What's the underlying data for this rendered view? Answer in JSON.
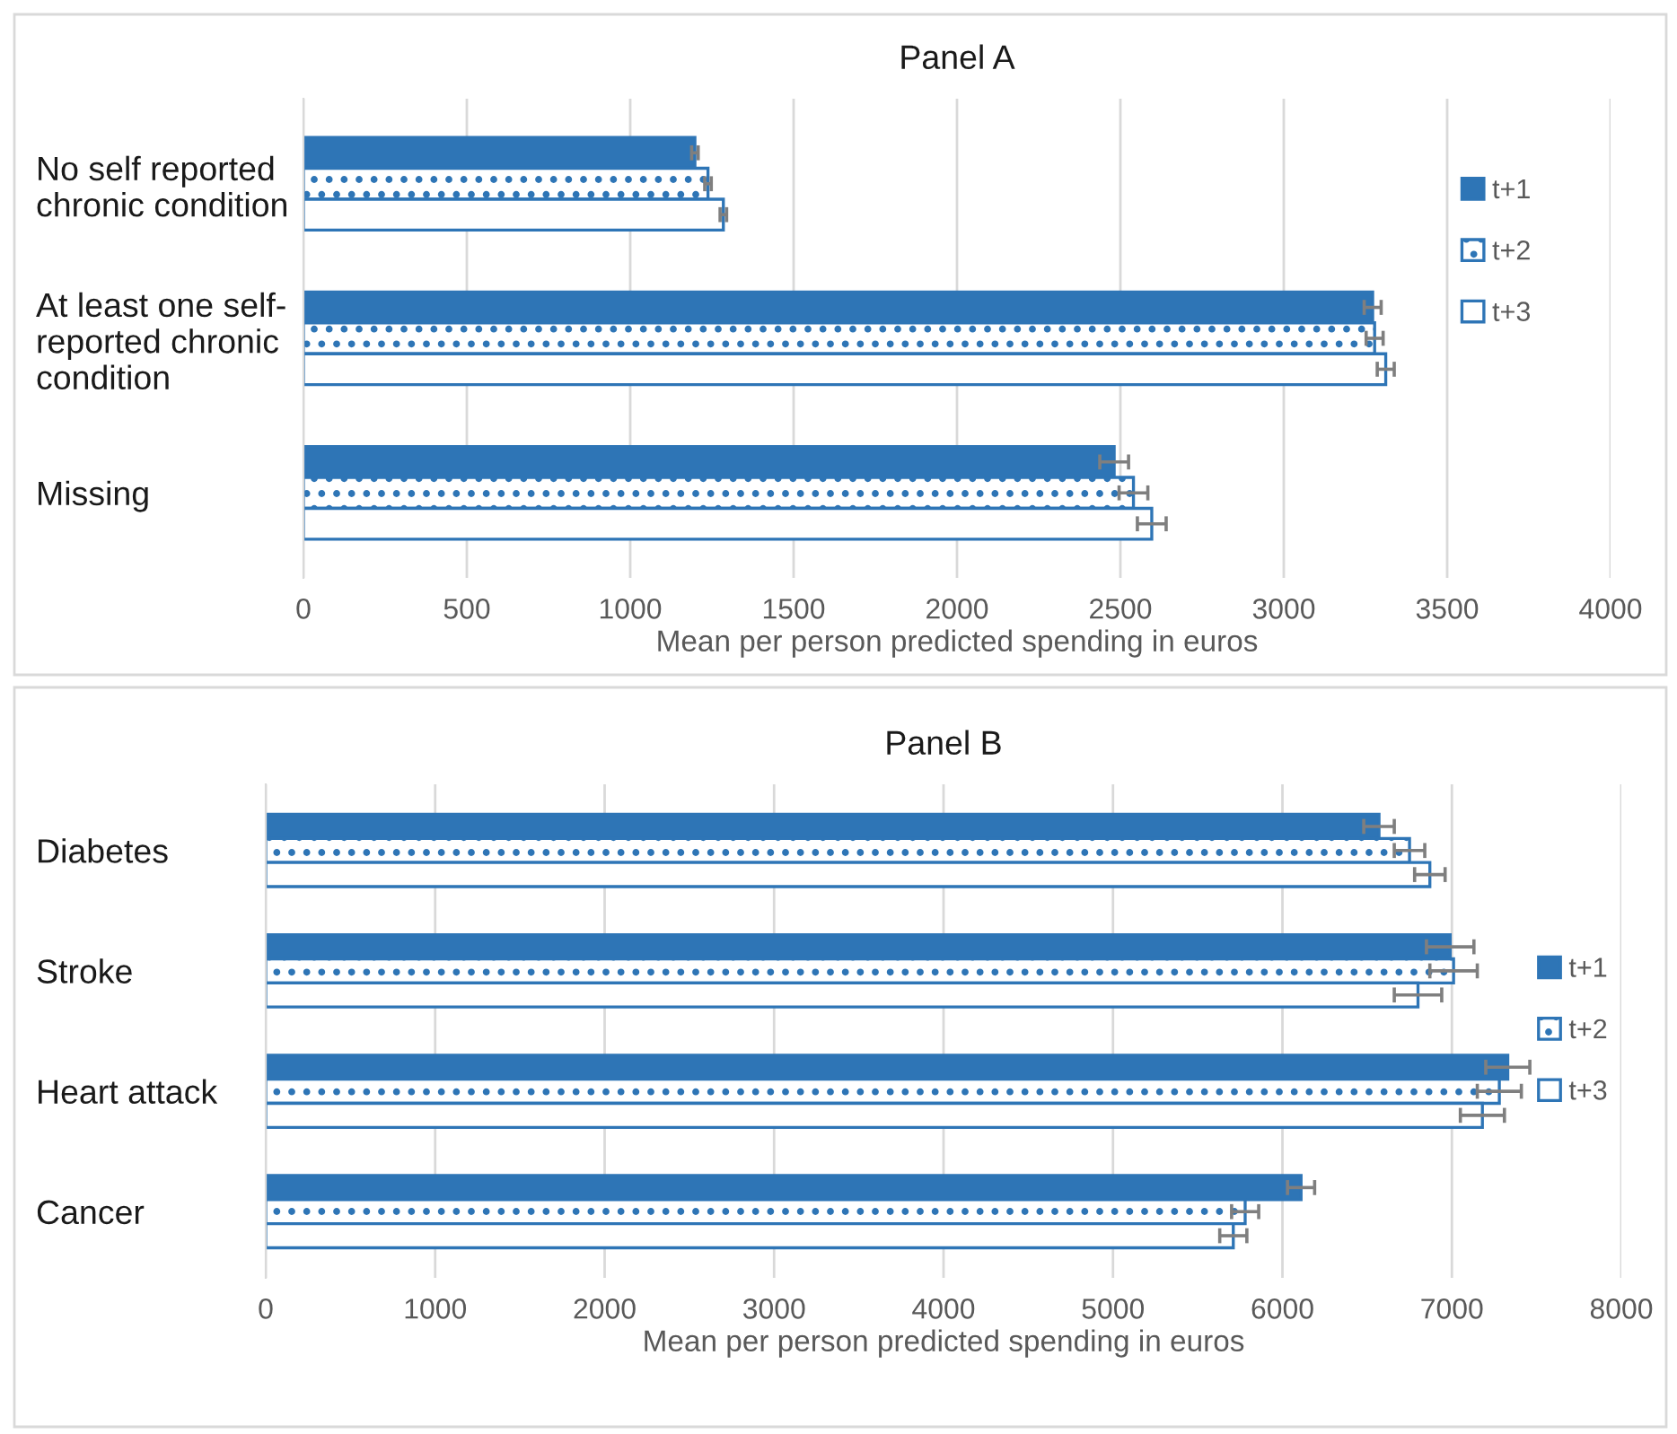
{
  "chart_data": [
    {
      "type": "bar",
      "orientation": "horizontal",
      "title": "Panel A",
      "xlabel": "Mean per person predicted spending in euros",
      "categories": [
        "No self reported\nchronic condition",
        "At least one self-\nreported chronic\ncondition",
        "Missing"
      ],
      "series": [
        {
          "name": "t+1",
          "color": "#2e75b6",
          "values": [
            1198,
            3272,
            2481
          ],
          "errors": [
            10,
            26,
            44
          ]
        },
        {
          "name": "t+2",
          "color": "#2e75b6",
          "values": [
            1238,
            3278,
            2540
          ],
          "errors": [
            10,
            26,
            44
          ]
        },
        {
          "name": "t+3",
          "color": "#2e75b6",
          "values": [
            1285,
            3312,
            2596
          ],
          "errors": [
            10,
            26,
            44
          ]
        }
      ],
      "xlim": [
        0,
        4000
      ],
      "xticks": [
        0,
        500,
        1000,
        1500,
        2000,
        2500,
        3000,
        3500,
        4000
      ],
      "grid": "x",
      "legend": "top right"
    },
    {
      "type": "bar",
      "orientation": "horizontal",
      "title": "Panel B",
      "xlabel": "Mean per person predicted spending in euros",
      "categories": [
        "Diabetes",
        "Stroke",
        "Heart attack",
        "Cancer"
      ],
      "series": [
        {
          "name": "t+1",
          "color": "#2e75b6",
          "values": [
            6570,
            6990,
            7330,
            6110
          ],
          "errors": [
            90,
            140,
            130,
            80
          ]
        },
        {
          "name": "t+2",
          "color": "#2e75b6",
          "values": [
            6750,
            7010,
            7280,
            5780
          ],
          "errors": [
            90,
            140,
            130,
            80
          ]
        },
        {
          "name": "t+3",
          "color": "#2e75b6",
          "values": [
            6870,
            6800,
            7180,
            5710
          ],
          "errors": [
            90,
            140,
            130,
            80
          ]
        }
      ],
      "xlim": [
        0,
        8000
      ],
      "xticks": [
        0,
        1000,
        2000,
        3000,
        4000,
        5000,
        6000,
        7000,
        8000
      ],
      "grid": "x",
      "legend": "right"
    }
  ]
}
